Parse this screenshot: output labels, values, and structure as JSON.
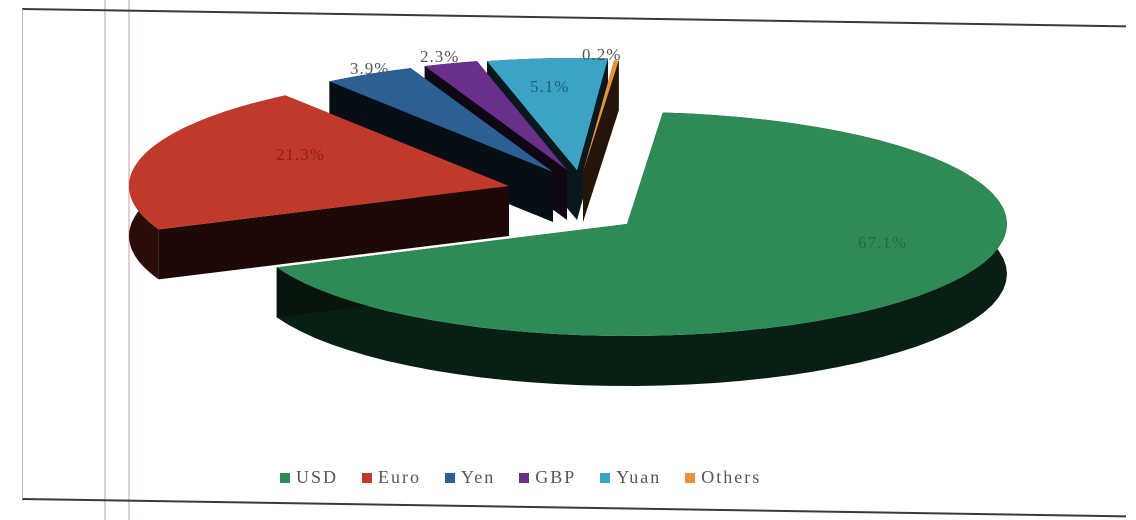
{
  "chart_data": {
    "type": "pie",
    "style": "3d-exploded",
    "legend_position": "bottom",
    "slices": [
      {
        "name": "USD",
        "value": 67.1,
        "label": "67.1%",
        "color": "#2e8b57"
      },
      {
        "name": "Euro",
        "value": 21.3,
        "label": "21.3%",
        "color": "#c0392b"
      },
      {
        "name": "Yen",
        "value": 3.9,
        "label": "3.9%",
        "color": "#2c5f93"
      },
      {
        "name": "GBP",
        "value": 2.3,
        "label": "2.3%",
        "color": "#6a2e8b"
      },
      {
        "name": "Yuan",
        "value": 5.1,
        "label": "5.1%",
        "color": "#3ba3c4"
      },
      {
        "name": "Others",
        "value": 0.2,
        "label": "0.2%",
        "color": "#e8913a"
      }
    ]
  }
}
